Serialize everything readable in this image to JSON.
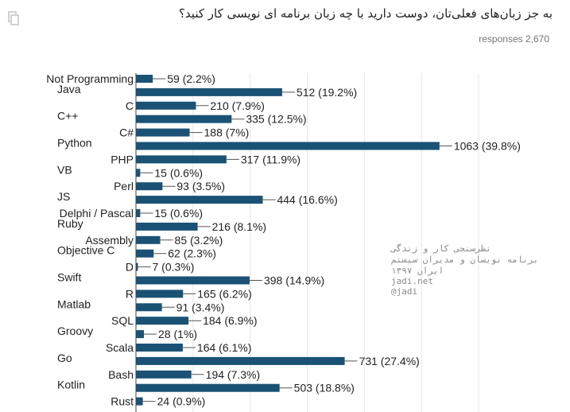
{
  "question": "به جز زبان‌های فعلی‌تان، دوست دارید با چه زبان برنامه ای نویسی کار کنید؟",
  "responses_label": "responses 2,670",
  "watermark": {
    "line1": "نظرسنجی کار و زندگی",
    "line2": "برنامه نویسان و مدیران سیستم",
    "line3": "ایران ۱۳۹۷",
    "site": "jadi.net",
    "handle": "@jadi"
  },
  "colors": {
    "bar": "#1a5276",
    "grid": "#e6e6e6",
    "text": "#222222"
  },
  "chart_data": {
    "type": "bar",
    "orientation": "horizontal",
    "categories": [
      "Not Programming",
      "Java",
      "C",
      "C++",
      "C#",
      "Python",
      "PHP",
      "VB",
      "Perl",
      "JS",
      "Delphi / Pascal",
      "Ruby",
      "Assembly",
      "Objective C",
      "D",
      "Swift",
      "R",
      "Matlab",
      "SQL",
      "Groovy",
      "Scala",
      "Go",
      "Bash",
      "Kotlin",
      "Rust"
    ],
    "values": [
      59,
      512,
      210,
      335,
      188,
      1063,
      317,
      15,
      93,
      444,
      15,
      216,
      85,
      62,
      7,
      398,
      165,
      91,
      184,
      28,
      164,
      731,
      194,
      503,
      24
    ],
    "value_labels": [
      "59 (2.2%)",
      "512 (19.2%)",
      "210 (7.9%)",
      "335 (12.5%)",
      "188 (7%)",
      "1063 (39.8%)",
      "317 (11.9%)",
      "15 (0.6%)",
      "93 (3.5%)",
      "444 (16.6%)",
      "15 (0.6%)",
      "216 (8.1%)",
      "85 (3.2%)",
      "62 (2.3%)",
      "7 (0.3%)",
      "398 (14.9%)",
      "165 (6.2%)",
      "91 (3.4%)",
      "184 (6.9%)",
      "28 (1%)",
      "164 (6.1%)",
      "731 (27.4%)",
      "194 (7.3%)",
      "503 (18.8%)",
      "24 (0.9%)"
    ],
    "xlim": [
      0,
      1200
    ],
    "grid": true
  }
}
